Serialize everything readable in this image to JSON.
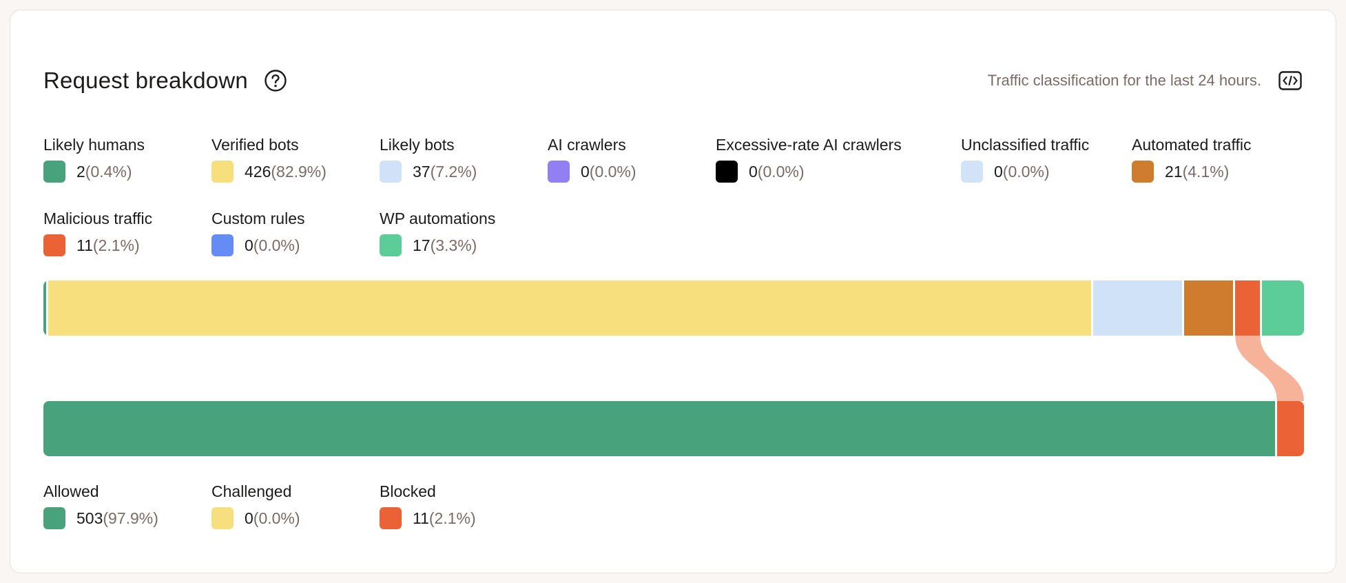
{
  "header": {
    "title": "Request breakdown",
    "subtitle": "Traffic classification for the last 24 hours.",
    "help_icon": "question-circle-icon",
    "embed_icon": "code-embed-icon"
  },
  "colors": {
    "likely_humans": "#48a37c",
    "verified_bots": "#f6df7c",
    "likely_bots": "#cfe2f8",
    "ai_crawlers": "#937ff4",
    "excessive_ai": "#000000",
    "unclassified": "#d3e3f7",
    "automated": "#cf7c2e",
    "malicious": "#ea6235",
    "custom_rules": "#648cf4",
    "wp_automations": "#5ccd98",
    "allowed": "#48a37c",
    "challenged": "#f6df7c",
    "blocked": "#ea6235",
    "flow": "#f7b29a"
  },
  "classification": {
    "items": [
      {
        "key": "likely_humans",
        "label": "Likely humans",
        "count": "2",
        "pct": "(0.4%)",
        "value": 2
      },
      {
        "key": "verified_bots",
        "label": "Verified bots",
        "count": "426",
        "pct": "(82.9%)",
        "value": 426
      },
      {
        "key": "likely_bots",
        "label": "Likely bots",
        "count": "37",
        "pct": "(7.2%)",
        "value": 37
      },
      {
        "key": "ai_crawlers",
        "label": "AI crawlers",
        "count": "0",
        "pct": "(0.0%)",
        "value": 0
      },
      {
        "key": "excessive_ai",
        "label": "Excessive-rate AI crawlers",
        "count": "0",
        "pct": "(0.0%)",
        "value": 0
      },
      {
        "key": "unclassified",
        "label": "Unclassified traffic",
        "count": "0",
        "pct": "(0.0%)",
        "value": 0
      },
      {
        "key": "automated",
        "label": "Automated traffic",
        "count": "21",
        "pct": "(4.1%)",
        "value": 21
      },
      {
        "key": "malicious",
        "label": "Malicious traffic",
        "count": "11",
        "pct": "(2.1%)",
        "value": 11
      },
      {
        "key": "custom_rules",
        "label": "Custom rules",
        "count": "0",
        "pct": "(0.0%)",
        "value": 0
      },
      {
        "key": "wp_automations",
        "label": "WP automations",
        "count": "17",
        "pct": "(3.3%)",
        "value": 17
      }
    ]
  },
  "action": {
    "items": [
      {
        "key": "allowed",
        "label": "Allowed",
        "count": "503",
        "pct": "(97.9%)",
        "value": 503
      },
      {
        "key": "challenged",
        "label": "Challenged",
        "count": "0",
        "pct": "(0.0%)",
        "value": 0
      },
      {
        "key": "blocked",
        "label": "Blocked",
        "count": "11",
        "pct": "(2.1%)",
        "value": 11
      }
    ]
  }
}
